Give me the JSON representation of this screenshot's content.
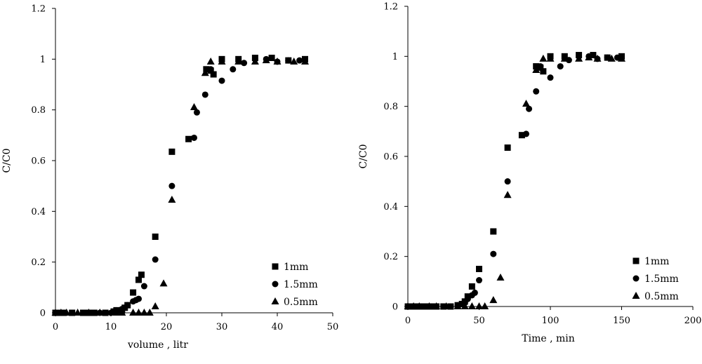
{
  "chart_data": [
    {
      "type": "scatter",
      "xlabel": "volume , litr",
      "ylabel": "C/C0",
      "xlim": [
        0,
        50
      ],
      "ylim": [
        0,
        1.2
      ],
      "xticks": [
        "0",
        "10",
        "20",
        "30",
        "40",
        "50"
      ],
      "yticks": [
        "0",
        "0.2",
        "0.4",
        "0.6",
        "0.8",
        "1",
        "1.2"
      ],
      "grid": false,
      "legend_position": "bottom-right",
      "series": [
        {
          "name": "1mm",
          "marker": "square",
          "points": [
            [
              0,
              0
            ],
            [
              1,
              0
            ],
            [
              1.5,
              0
            ],
            [
              3,
              0
            ],
            [
              5,
              0
            ],
            [
              6,
              0
            ],
            [
              7,
              0
            ],
            [
              9,
              0
            ],
            [
              10.5,
              0.005
            ],
            [
              11,
              0.01
            ],
            [
              12,
              0.01
            ],
            [
              12.5,
              0.02
            ],
            [
              13,
              0.03
            ],
            [
              14,
              0.08
            ],
            [
              15,
              0.13
            ],
            [
              15.5,
              0.15
            ],
            [
              18,
              0.3
            ],
            [
              21,
              0.635
            ],
            [
              24,
              0.685
            ],
            [
              27.2,
              0.96
            ],
            [
              28,
              0.955
            ],
            [
              28.5,
              0.94
            ],
            [
              30,
              1.0
            ],
            [
              33,
              1.0
            ],
            [
              36,
              1.005
            ],
            [
              39,
              1.005
            ],
            [
              42,
              0.995
            ],
            [
              45,
              1.0
            ]
          ]
        },
        {
          "name": "1.5mm",
          "marker": "circle",
          "points": [
            [
              0,
              0
            ],
            [
              1,
              0
            ],
            [
              1.5,
              0
            ],
            [
              3,
              0
            ],
            [
              5,
              0
            ],
            [
              6,
              0
            ],
            [
              7,
              0
            ],
            [
              8,
              0
            ],
            [
              10,
              0
            ],
            [
              11,
              0.01
            ],
            [
              12,
              0.015
            ],
            [
              13,
              0.03
            ],
            [
              14,
              0.045
            ],
            [
              14.5,
              0.05
            ],
            [
              15,
              0.055
            ],
            [
              16,
              0.105
            ],
            [
              18,
              0.21
            ],
            [
              21,
              0.5
            ],
            [
              25,
              0.69
            ],
            [
              25.5,
              0.79
            ],
            [
              27,
              0.86
            ],
            [
              28,
              0.96
            ],
            [
              30,
              0.915
            ],
            [
              32,
              0.96
            ],
            [
              34,
              0.985
            ],
            [
              36,
              1.0
            ],
            [
              38,
              1.0
            ],
            [
              40,
              0.99
            ],
            [
              42,
              0.995
            ],
            [
              44,
              0.995
            ]
          ]
        },
        {
          "name": "0.5mm",
          "marker": "triangle",
          "points": [
            [
              0,
              0
            ],
            [
              1,
              0
            ],
            [
              2,
              0
            ],
            [
              4,
              0
            ],
            [
              6,
              0
            ],
            [
              8,
              0
            ],
            [
              11,
              0
            ],
            [
              12,
              0
            ],
            [
              14,
              0
            ],
            [
              15,
              0
            ],
            [
              16,
              0
            ],
            [
              17,
              0
            ],
            [
              18,
              0.025
            ],
            [
              19.5,
              0.115
            ],
            [
              21,
              0.445
            ],
            [
              25,
              0.81
            ],
            [
              27,
              0.945
            ],
            [
              28,
              0.99
            ],
            [
              30,
              0.99
            ],
            [
              33,
              0.99
            ],
            [
              36,
              0.99
            ],
            [
              38,
              0.995
            ],
            [
              40,
              0.99
            ],
            [
              43,
              0.99
            ],
            [
              45,
              0.99
            ]
          ]
        }
      ]
    },
    {
      "type": "scatter",
      "xlabel": "Time , min",
      "ylabel": "C/C0",
      "xlim": [
        0,
        200
      ],
      "ylim": [
        0,
        1.2
      ],
      "xticks": [
        "0",
        "50",
        "100",
        "150",
        "200"
      ],
      "yticks": [
        "0",
        "0.2",
        "0.4",
        "0.6",
        "0.8",
        "1",
        "1.2"
      ],
      "grid": false,
      "legend_position": "bottom-right",
      "series": [
        {
          "name": "1mm",
          "marker": "square",
          "points": [
            [
              0,
              0
            ],
            [
              4,
              0
            ],
            [
              8,
              0
            ],
            [
              12,
              0
            ],
            [
              16,
              0
            ],
            [
              20,
              0
            ],
            [
              25,
              0
            ],
            [
              30,
              0
            ],
            [
              35,
              0.005
            ],
            [
              38,
              0.01
            ],
            [
              40,
              0.02
            ],
            [
              42,
              0.04
            ],
            [
              45,
              0.08
            ],
            [
              50,
              0.15
            ],
            [
              60,
              0.3
            ],
            [
              70,
              0.635
            ],
            [
              80,
              0.685
            ],
            [
              90,
              0.96
            ],
            [
              93,
              0.955
            ],
            [
              95,
              0.94
            ],
            [
              100,
              1.0
            ],
            [
              110,
              1.0
            ],
            [
              120,
              1.005
            ],
            [
              130,
              1.005
            ],
            [
              140,
              0.995
            ],
            [
              150,
              1.0
            ]
          ]
        },
        {
          "name": "1.5mm",
          "marker": "circle",
          "points": [
            [
              0,
              0
            ],
            [
              4,
              0
            ],
            [
              8,
              0
            ],
            [
              12,
              0
            ],
            [
              16,
              0
            ],
            [
              20,
              0
            ],
            [
              25,
              0
            ],
            [
              30,
              0
            ],
            [
              35,
              0.005
            ],
            [
              38,
              0.01
            ],
            [
              40,
              0.015
            ],
            [
              42,
              0.03
            ],
            [
              45,
              0.045
            ],
            [
              47,
              0.055
            ],
            [
              50,
              0.105
            ],
            [
              60,
              0.21
            ],
            [
              70,
              0.5
            ],
            [
              83,
              0.69
            ],
            [
              85,
              0.79
            ],
            [
              90,
              0.86
            ],
            [
              93,
              0.96
            ],
            [
              100,
              0.915
            ],
            [
              107,
              0.96
            ],
            [
              113,
              0.985
            ],
            [
              120,
              1.0
            ],
            [
              127,
              1.0
            ],
            [
              133,
              0.99
            ],
            [
              140,
              0.995
            ],
            [
              147,
              0.995
            ]
          ]
        },
        {
          "name": "0.5mm",
          "marker": "triangle",
          "points": [
            [
              0,
              0
            ],
            [
              4,
              0
            ],
            [
              8,
              0
            ],
            [
              15,
              0
            ],
            [
              20,
              0
            ],
            [
              27,
              0
            ],
            [
              35,
              0
            ],
            [
              40,
              0
            ],
            [
              45,
              0
            ],
            [
              50,
              0
            ],
            [
              54,
              0
            ],
            [
              60,
              0.025
            ],
            [
              65,
              0.115
            ],
            [
              70,
              0.445
            ],
            [
              83,
              0.81
            ],
            [
              90,
              0.945
            ],
            [
              95,
              0.99
            ],
            [
              100,
              0.99
            ],
            [
              110,
              0.99
            ],
            [
              120,
              0.99
            ],
            [
              127,
              0.995
            ],
            [
              133,
              0.99
            ],
            [
              143,
              0.99
            ],
            [
              150,
              0.99
            ]
          ]
        }
      ]
    }
  ]
}
